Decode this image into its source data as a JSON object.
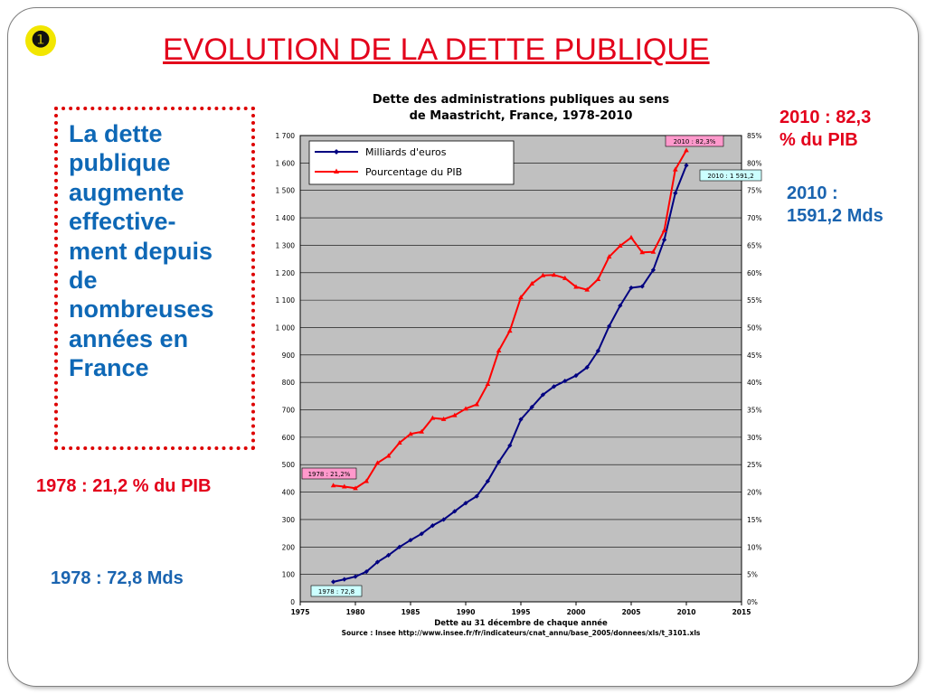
{
  "slide": {
    "bullet": "❶",
    "title": "EVOLUTION DE LA DETTE PUBLIQUE",
    "left_lines": [
      "La dette",
      "publique",
      "augmente",
      "effective-",
      "ment depuis",
      "de",
      "nombreuses",
      "années en",
      "France"
    ],
    "annot_2010_pct": [
      "2010 : 82,3",
      "% du PIB"
    ],
    "annot_2010_mds": [
      "2010 :",
      "1591,2 Mds"
    ],
    "annot_1978_pct": "1978 : 21,2 % du PIB",
    "annot_1978_mds": "1978 : 72,8 Mds"
  },
  "chart_data": {
    "type": "line",
    "title": "Dette des administrations publiques au sens de Maastricht, France, 1978-2010",
    "title_lines": [
      "Dette des administrations publiques au sens",
      "de Maastricht, France, 1978-2010"
    ],
    "xlabel": "Dette au 31 décembre de chaque année",
    "source": "Source : Insee http://www.insee.fr/fr/indicateurs/cnat_annu/base_2005/donnees/xls/t_3101.xls",
    "xlim": [
      1975,
      2015
    ],
    "x_ticks": [
      "1975",
      "1980",
      "1985",
      "1990",
      "1995",
      "2000",
      "2005",
      "2010",
      "2015"
    ],
    "ylim_left": [
      0,
      1700
    ],
    "y_left_ticks": [
      "0",
      "100",
      "200",
      "300",
      "400",
      "500",
      "600",
      "700",
      "800",
      "900",
      "1 000",
      "1 100",
      "1 200",
      "1 300",
      "1 400",
      "1 500",
      "1 600",
      "1 700"
    ],
    "ylim_right": [
      0,
      85
    ],
    "y_right_ticks": [
      "0%",
      "5%",
      "10%",
      "15%",
      "20%",
      "25%",
      "30%",
      "35%",
      "40%",
      "45%",
      "50%",
      "55%",
      "60%",
      "65%",
      "70%",
      "75%",
      "80%",
      "85%"
    ],
    "grid": true,
    "legend_position": "top-left",
    "x": [
      1978,
      1979,
      1980,
      1981,
      1982,
      1983,
      1984,
      1985,
      1986,
      1987,
      1988,
      1989,
      1990,
      1991,
      1992,
      1993,
      1994,
      1995,
      1996,
      1997,
      1998,
      1999,
      2000,
      2001,
      2002,
      2003,
      2004,
      2005,
      2006,
      2007,
      2008,
      2009,
      2010
    ],
    "series": [
      {
        "name": "Milliards d'euros",
        "axis": "left",
        "color": "#000080",
        "values": [
          72.8,
          82,
          92,
          110,
          145,
          170,
          200,
          225,
          248,
          278,
          300,
          330,
          360,
          385,
          440,
          510,
          570,
          665,
          710,
          755,
          785,
          805,
          825,
          855,
          915,
          1005,
          1080,
          1145,
          1150,
          1210,
          1320,
          1490,
          1591.2
        ]
      },
      {
        "name": "Pourcentage du PIB",
        "axis": "right",
        "color": "#ff0000",
        "values": [
          21.2,
          21.0,
          20.7,
          22.0,
          25.3,
          26.6,
          29.0,
          30.6,
          31.0,
          33.5,
          33.3,
          34.0,
          35.2,
          36.0,
          39.7,
          45.8,
          49.4,
          55.5,
          58.0,
          59.5,
          59.6,
          59.0,
          57.4,
          56.9,
          58.8,
          62.9,
          64.9,
          66.4,
          63.7,
          63.8,
          67.7,
          78.8,
          82.3
        ]
      }
    ],
    "callouts": [
      "2010 : 82,3%",
      "2010 : 1 591,2",
      "1978 : 21,2%",
      "1978 : 72,8"
    ],
    "plot_color": "#c0c0c0"
  }
}
